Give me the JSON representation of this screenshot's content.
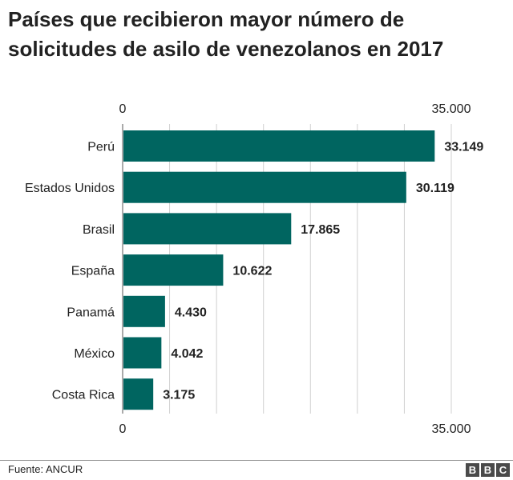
{
  "title": "Países que recibieron mayor número de solicitudes de asilo de venezolanos en 2017",
  "footer": {
    "source": "Fuente: ANCUR",
    "logo": [
      "B",
      "B",
      "C"
    ]
  },
  "colors": {
    "bar": "#006560",
    "grid": "#d0d0d0",
    "text": "#222222"
  },
  "chart_data": {
    "type": "bar",
    "orientation": "horizontal",
    "categories": [
      "Perú",
      "Estados Unidos",
      "Brasil",
      "España",
      "Panamá",
      "México",
      "Costa Rica"
    ],
    "values": [
      33149,
      30119,
      17865,
      10622,
      4430,
      4042,
      3175
    ],
    "value_labels": [
      "33.149",
      "30.119",
      "17.865",
      "10.622",
      "4.430",
      "4.042",
      "3.175"
    ],
    "xlim": [
      0,
      35000
    ],
    "axis_ticks": [
      "0",
      "35.000"
    ],
    "grid": true,
    "title": "Países que recibieron mayor número de solicitudes de asilo de venezolanos en 2017"
  }
}
